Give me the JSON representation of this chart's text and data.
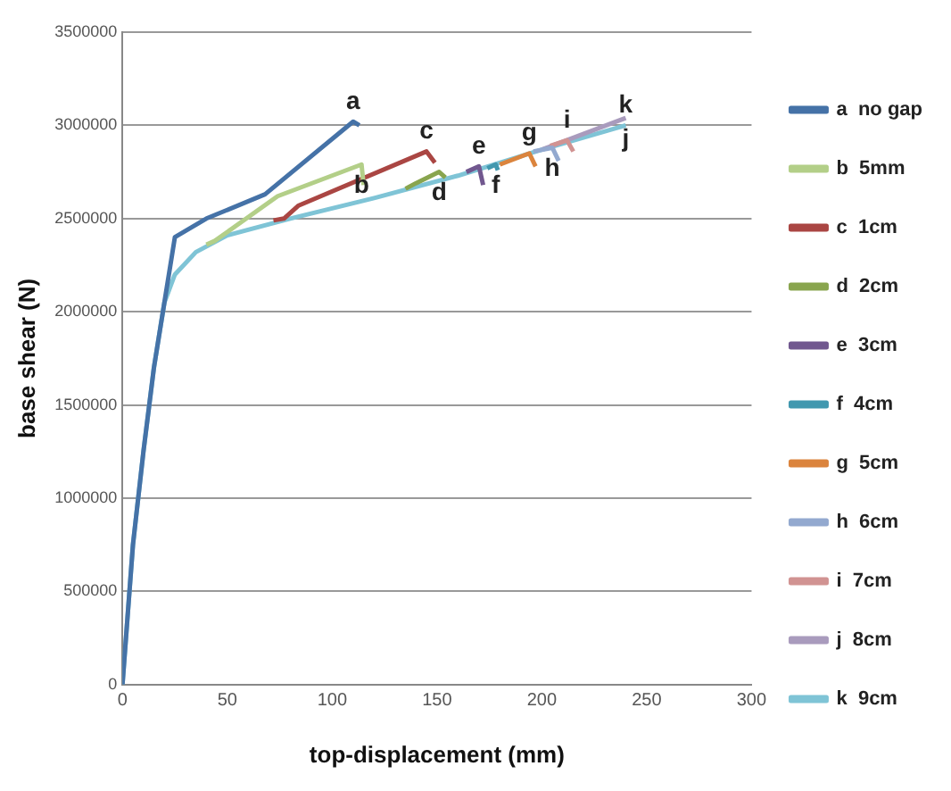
{
  "chart_data": {
    "type": "line",
    "xlabel": "top-displacement (mm)",
    "ylabel": "base shear (N)",
    "xlim": [
      0,
      300
    ],
    "xticks": [
      0,
      50,
      100,
      150,
      200,
      250,
      300
    ],
    "ylim": [
      0,
      3500000
    ],
    "yticks": [
      0,
      500000,
      1000000,
      1500000,
      2000000,
      2500000,
      3000000,
      3500000
    ],
    "grid": "y",
    "legend": "right",
    "marker": "none",
    "line_style": "solid",
    "series": [
      {
        "name": "a  no gap",
        "color": "#4572a7",
        "x": [
          0,
          5,
          10,
          15,
          20,
          25,
          40,
          68,
          110,
          113
        ],
        "values": [
          0,
          750000,
          1250000,
          1700000,
          2050000,
          2400000,
          2500000,
          2630000,
          3020000,
          3000000
        ]
      },
      {
        "name": "b  5mm",
        "color": "#b3cf88",
        "x": [
          40,
          44,
          74,
          114,
          115
        ],
        "values": [
          2360000,
          2380000,
          2620000,
          2790000,
          2680000
        ]
      },
      {
        "name": "c  1cm",
        "color": "#aa4643",
        "x": [
          72,
          77,
          84,
          145,
          149
        ],
        "values": [
          2490000,
          2500000,
          2570000,
          2860000,
          2800000
        ]
      },
      {
        "name": "d  2cm",
        "color": "#89a54e",
        "x": [
          135,
          140,
          151,
          154
        ],
        "values": [
          2660000,
          2690000,
          2750000,
          2720000
        ]
      },
      {
        "name": "e  3cm",
        "color": "#71588f",
        "x": [
          164,
          170,
          172
        ],
        "values": [
          2750000,
          2780000,
          2680000
        ]
      },
      {
        "name": "f  4cm",
        "color": "#4198af",
        "x": [
          174,
          178,
          179
        ],
        "values": [
          2770000,
          2790000,
          2760000
        ]
      },
      {
        "name": "g  5cm",
        "color": "#db843d",
        "x": [
          180,
          194,
          197
        ],
        "values": [
          2790000,
          2850000,
          2780000
        ]
      },
      {
        "name": "h  6cm",
        "color": "#93a9cf",
        "x": [
          196,
          205,
          208
        ],
        "values": [
          2860000,
          2880000,
          2810000
        ]
      },
      {
        "name": "i  7cm",
        "color": "#d19392",
        "x": [
          204,
          212,
          215
        ],
        "values": [
          2890000,
          2920000,
          2860000
        ]
      },
      {
        "name": "j  8cm",
        "color": "#a99bbd",
        "x": [
          200,
          240
        ],
        "values": [
          2870000,
          3040000
        ]
      },
      {
        "name": "k  9cm",
        "color": "#7fc4d6",
        "x": [
          0,
          5,
          10,
          15,
          20,
          25,
          35,
          50,
          80,
          120,
          160,
          200,
          240
        ],
        "values": [
          0,
          750000,
          1250000,
          1700000,
          2050000,
          2200000,
          2320000,
          2410000,
          2500000,
          2610000,
          2730000,
          2870000,
          3000000
        ]
      }
    ],
    "annotations": [
      {
        "text": "a",
        "x": 110,
        "y": 3020000
      },
      {
        "text": "b",
        "x": 114,
        "y": 2790000
      },
      {
        "text": "c",
        "x": 145,
        "y": 2860000
      },
      {
        "text": "d",
        "x": 151,
        "y": 2750000
      },
      {
        "text": "e",
        "x": 170,
        "y": 2780000
      },
      {
        "text": "f",
        "x": 178,
        "y": 2790000
      },
      {
        "text": "g",
        "x": 194,
        "y": 2850000
      },
      {
        "text": "h",
        "x": 205,
        "y": 2880000
      },
      {
        "text": "i",
        "x": 212,
        "y": 2920000
      },
      {
        "text": "j",
        "x": 240,
        "y": 3040000
      },
      {
        "text": "k",
        "x": 240,
        "y": 3000000
      }
    ]
  }
}
